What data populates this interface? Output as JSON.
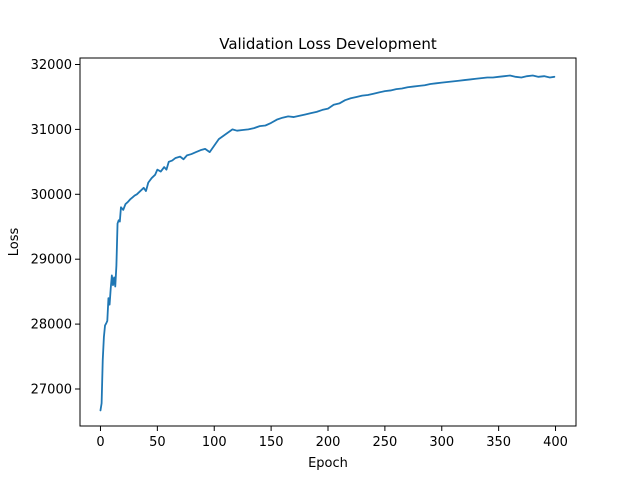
{
  "chart_data": {
    "type": "line",
    "title": "Validation Loss Development",
    "xlabel": "Epoch",
    "ylabel": "Loss",
    "xlim": [
      -18,
      418
    ],
    "ylim": [
      26430,
      32100
    ],
    "xticks": [
      0,
      50,
      100,
      150,
      200,
      250,
      300,
      350,
      400
    ],
    "xtick_labels": [
      "0",
      "50",
      "100",
      "150",
      "200",
      "250",
      "300",
      "350",
      "400"
    ],
    "yticks": [
      27000,
      28000,
      29000,
      30000,
      31000,
      32000
    ],
    "ytick_labels": [
      "27000",
      "28000",
      "29000",
      "30000",
      "31000",
      "32000"
    ],
    "grid": false,
    "legend": "none",
    "series": [
      {
        "color": "#1f77b4",
        "x": [
          0,
          1,
          2,
          3,
          4,
          5,
          6,
          7,
          8,
          9,
          10,
          11,
          12,
          13,
          14,
          15,
          16,
          17,
          18,
          19,
          20,
          22,
          24,
          26,
          28,
          30,
          32,
          35,
          38,
          40,
          42,
          45,
          48,
          50,
          53,
          56,
          58,
          60,
          63,
          66,
          70,
          73,
          76,
          80,
          84,
          88,
          92,
          96,
          100,
          104,
          108,
          112,
          116,
          120,
          125,
          130,
          135,
          140,
          145,
          150,
          155,
          160,
          165,
          170,
          175,
          180,
          185,
          190,
          195,
          200,
          205,
          210,
          215,
          220,
          225,
          230,
          235,
          240,
          245,
          250,
          255,
          260,
          265,
          270,
          275,
          280,
          285,
          290,
          295,
          300,
          305,
          310,
          315,
          320,
          325,
          330,
          335,
          340,
          345,
          350,
          355,
          360,
          365,
          370,
          375,
          380,
          385,
          390,
          395,
          399
        ],
        "y": [
          26670,
          26780,
          27450,
          27800,
          27980,
          28010,
          28050,
          28400,
          28300,
          28550,
          28750,
          28600,
          28720,
          28580,
          28900,
          29550,
          29600,
          29580,
          29800,
          29780,
          29760,
          29850,
          29880,
          29920,
          29950,
          29980,
          30000,
          30050,
          30100,
          30050,
          30180,
          30250,
          30300,
          30380,
          30350,
          30420,
          30380,
          30500,
          30520,
          30560,
          30580,
          30540,
          30600,
          30620,
          30650,
          30680,
          30700,
          30650,
          30750,
          30850,
          30900,
          30950,
          31000,
          30980,
          30990,
          31000,
          31020,
          31050,
          31060,
          31100,
          31150,
          31180,
          31200,
          31190,
          31210,
          31230,
          31250,
          31270,
          31300,
          31320,
          31380,
          31400,
          31450,
          31480,
          31500,
          31520,
          31530,
          31550,
          31570,
          31590,
          31600,
          31620,
          31630,
          31650,
          31660,
          31670,
          31680,
          31700,
          31710,
          31720,
          31730,
          31740,
          31750,
          31760,
          31770,
          31780,
          31790,
          31800,
          31800,
          31810,
          31820,
          31830,
          31810,
          31800,
          31820,
          31830,
          31810,
          31820,
          31800,
          31810
        ]
      }
    ]
  }
}
